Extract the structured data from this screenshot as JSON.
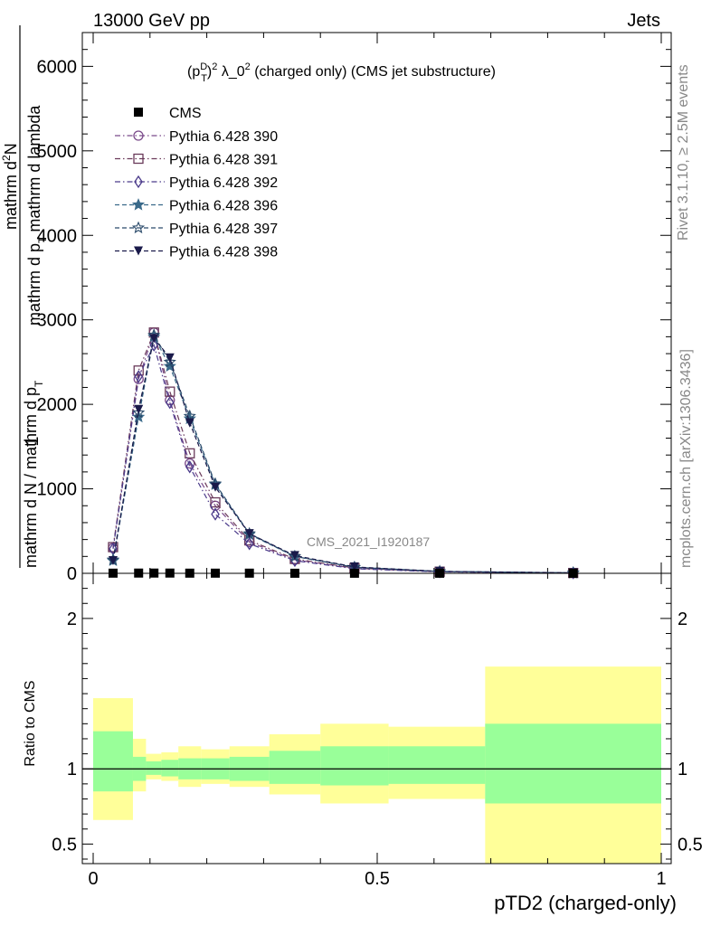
{
  "header": {
    "left": "13000 GeV pp",
    "right": "Jets"
  },
  "side": {
    "rivet": "Rivet 3.1.10, ≥ 2.5M events",
    "mcplots": "mcplots.cern.ch [arXiv:1306.3436]"
  },
  "watermark": "CMS_2021_I1920187",
  "chart_data": [
    {
      "type": "line",
      "title_main": "(p",
      "title_sup": "D",
      "title_sub": "T",
      "title_rest": ")",
      "title_pow": "2",
      "title_tail": " λ_0",
      "title_pow2": "2",
      "title_end": " (charged only) (CMS jet substructure)",
      "ylabel_top_num": "mathrm d",
      "ylabel_top_N": "N",
      "ylabel_top_2": "2",
      "ylabel_top_den": "mathrm d p",
      "ylabel_top_T": "T",
      "ylabel_top_den2": " mathrm d lambda",
      "ylabel_bottom_one": "1",
      "ylabel_bottom": "mathrm d N / mathrm d p",
      "ylabel_bottom_T": "T",
      "ylim": [
        0,
        6400
      ],
      "yticks": [
        0,
        1000,
        2000,
        3000,
        4000,
        5000,
        6000
      ],
      "yticklabels": [
        "0",
        "1000",
        "2000",
        "3000",
        "4000",
        "5000",
        "6000"
      ],
      "xlim": [
        0,
        1
      ],
      "data": {
        "name": "CMS",
        "x": [
          0.035,
          0.08,
          0.107,
          0.135,
          0.17,
          0.215,
          0.275,
          0.355,
          0.46,
          0.61,
          0.845
        ],
        "y": [
          2,
          3,
          3,
          3,
          2,
          2,
          2,
          1,
          1,
          1,
          0.5
        ]
      },
      "series": [
        {
          "name": "Pythia 6.428 390",
          "color": "#7a4a8a",
          "marker": "circle-open",
          "dash": "dashdot",
          "x": [
            0.035,
            0.08,
            0.107,
            0.135,
            0.17,
            0.215,
            0.275,
            0.355,
            0.46,
            0.61,
            0.845
          ],
          "y": [
            300,
            2300,
            2850,
            2050,
            1300,
            800,
            370,
            160,
            60,
            18,
            4
          ]
        },
        {
          "name": "Pythia 6.428 391",
          "color": "#6a3a5a",
          "marker": "square-open",
          "dash": "dashdot",
          "x": [
            0.035,
            0.08,
            0.107,
            0.135,
            0.17,
            0.215,
            0.275,
            0.355,
            0.46,
            0.61,
            0.845
          ],
          "y": [
            310,
            2400,
            2850,
            2150,
            1420,
            840,
            390,
            170,
            62,
            19,
            4
          ]
        },
        {
          "name": "Pythia 6.428 392",
          "color": "#4a3a8a",
          "marker": "diamond-open",
          "dash": "dashdot",
          "x": [
            0.035,
            0.08,
            0.107,
            0.135,
            0.17,
            0.215,
            0.275,
            0.355,
            0.46,
            0.61,
            0.845
          ],
          "y": [
            290,
            2330,
            2700,
            2020,
            1260,
            700,
            350,
            150,
            55,
            17,
            4
          ]
        },
        {
          "name": "Pythia 6.428 396",
          "color": "#3a6a8a",
          "marker": "star-filled",
          "dash": "dash",
          "x": [
            0.035,
            0.08,
            0.107,
            0.135,
            0.17,
            0.215,
            0.275,
            0.355,
            0.46,
            0.61,
            0.845
          ],
          "y": [
            150,
            1850,
            2800,
            2450,
            1830,
            1050,
            460,
            200,
            72,
            22,
            5
          ]
        },
        {
          "name": "Pythia 6.428 397",
          "color": "#2a4a6a",
          "marker": "star-open",
          "dash": "dash",
          "x": [
            0.035,
            0.08,
            0.107,
            0.135,
            0.17,
            0.215,
            0.275,
            0.355,
            0.46,
            0.61,
            0.845
          ],
          "y": [
            160,
            1900,
            2820,
            2500,
            1860,
            1060,
            470,
            200,
            72,
            22,
            5
          ]
        },
        {
          "name": "Pythia 6.428 398",
          "color": "#1a1a4a",
          "marker": "triangle-down-filled",
          "dash": "dash",
          "x": [
            0.035,
            0.08,
            0.107,
            0.135,
            0.17,
            0.215,
            0.275,
            0.355,
            0.46,
            0.61,
            0.845
          ],
          "y": [
            150,
            1940,
            2780,
            2550,
            1780,
            1020,
            470,
            210,
            76,
            24,
            6
          ]
        }
      ]
    },
    {
      "type": "area",
      "ylabel": "Ratio to CMS",
      "xlabel": "pTD2 (charged-only)",
      "ylim": [
        0.37,
        2.3
      ],
      "yticks": [
        0.5,
        1,
        2
      ],
      "yticklabels": [
        "0.5",
        "1",
        "2"
      ],
      "xticks": [
        0,
        0.5,
        1
      ],
      "xticklabels": [
        "0",
        "0.5",
        "1"
      ],
      "bins": [
        {
          "x0": 0.0,
          "x1": 0.07,
          "inner": [
            0.85,
            1.25
          ],
          "outer": [
            0.66,
            1.47
          ]
        },
        {
          "x0": 0.07,
          "x1": 0.093,
          "inner": [
            0.92,
            1.08
          ],
          "outer": [
            0.85,
            1.2
          ]
        },
        {
          "x0": 0.093,
          "x1": 0.12,
          "inner": [
            0.96,
            1.05
          ],
          "outer": [
            0.93,
            1.1
          ]
        },
        {
          "x0": 0.12,
          "x1": 0.15,
          "inner": [
            0.95,
            1.06
          ],
          "outer": [
            0.92,
            1.11
          ]
        },
        {
          "x0": 0.15,
          "x1": 0.19,
          "inner": [
            0.93,
            1.07
          ],
          "outer": [
            0.88,
            1.15
          ]
        },
        {
          "x0": 0.19,
          "x1": 0.24,
          "inner": [
            0.93,
            1.07
          ],
          "outer": [
            0.9,
            1.13
          ]
        },
        {
          "x0": 0.24,
          "x1": 0.31,
          "inner": [
            0.92,
            1.08
          ],
          "outer": [
            0.88,
            1.15
          ]
        },
        {
          "x0": 0.31,
          "x1": 0.4,
          "inner": [
            0.9,
            1.12
          ],
          "outer": [
            0.83,
            1.23
          ]
        },
        {
          "x0": 0.4,
          "x1": 0.52,
          "inner": [
            0.89,
            1.15
          ],
          "outer": [
            0.77,
            1.3
          ]
        },
        {
          "x0": 0.52,
          "x1": 0.69,
          "inner": [
            0.9,
            1.15
          ],
          "outer": [
            0.8,
            1.28
          ]
        },
        {
          "x0": 0.69,
          "x1": 1.0,
          "inner": [
            0.77,
            1.3
          ],
          "outer": [
            0.37,
            1.68
          ]
        }
      ]
    }
  ]
}
